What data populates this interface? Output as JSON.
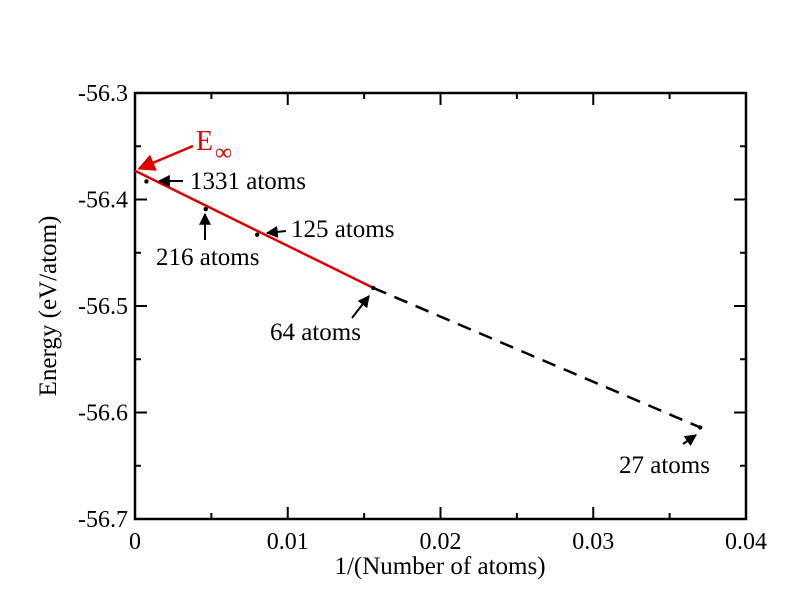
{
  "chart_data": {
    "type": "line",
    "xlabel": "1/(Number of atoms)",
    "ylabel": "Energy (eV/atom)",
    "xlim": [
      0,
      0.04
    ],
    "ylim": [
      -56.7,
      -56.3
    ],
    "x_ticks": [
      0,
      0.01,
      0.02,
      0.03,
      0.04
    ],
    "x_tick_labels": [
      "0",
      "0.01",
      "0.02",
      "0.03",
      "0.04"
    ],
    "y_ticks": [
      -56.3,
      -56.4,
      -56.5,
      -56.6,
      -56.7
    ],
    "y_tick_labels": [
      "-56.3",
      "-56.4",
      "-56.5",
      "-56.6",
      "-56.7"
    ],
    "grid": false,
    "points": [
      {
        "label": "1331 atoms",
        "x": 0.00075,
        "y": -56.383
      },
      {
        "label": "216 atoms",
        "x": 0.00463,
        "y": -56.409
      },
      {
        "label": "125 atoms",
        "x": 0.008,
        "y": -56.433
      },
      {
        "label": "64 atoms",
        "x": 0.0156,
        "y": -56.483
      },
      {
        "label": "27 atoms",
        "x": 0.037,
        "y": -56.614
      }
    ],
    "series": [
      {
        "color": "#dd0000",
        "style": "solid",
        "x": [
          0,
          0.0156
        ],
        "y": [
          -56.373,
          -56.483
        ]
      },
      {
        "color": "#000000",
        "style": "dashed",
        "x": [
          0.0156,
          0.037
        ],
        "y": [
          -56.483,
          -56.614
        ]
      }
    ],
    "annotations": [
      {
        "text_main": "E",
        "text_sub": "∞",
        "color": "#dd0000",
        "x": 0,
        "y": -56.373
      }
    ]
  }
}
